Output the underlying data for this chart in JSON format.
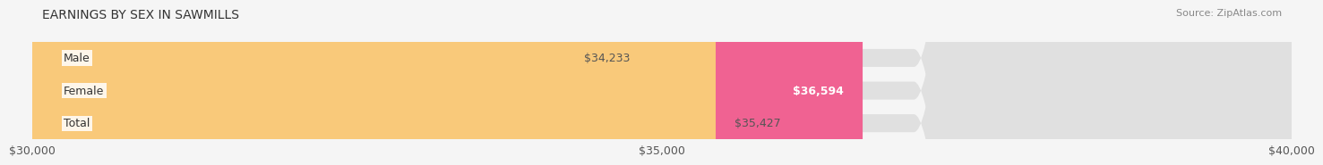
{
  "title": "EARNINGS BY SEX IN SAWMILLS",
  "source": "Source: ZipAtlas.com",
  "categories": [
    "Male",
    "Female",
    "Total"
  ],
  "values": [
    34233,
    36594,
    35427
  ],
  "bar_colors": [
    "#aec6e8",
    "#f06292",
    "#f9c97a"
  ],
  "bar_labels": [
    "$34,233",
    "$36,594",
    "$35,427"
  ],
  "label_inside": [
    false,
    true,
    false
  ],
  "xmin": 30000,
  "xmax": 40000,
  "xticks": [
    30000,
    35000,
    40000
  ],
  "xtick_labels": [
    "$30,000",
    "$35,000",
    "$40,000"
  ],
  "background_color": "#f5f5f5",
  "bar_bg_color": "#e0e0e0",
  "title_fontsize": 10,
  "source_fontsize": 8,
  "label_fontsize": 9,
  "tick_fontsize": 9,
  "category_fontsize": 9
}
